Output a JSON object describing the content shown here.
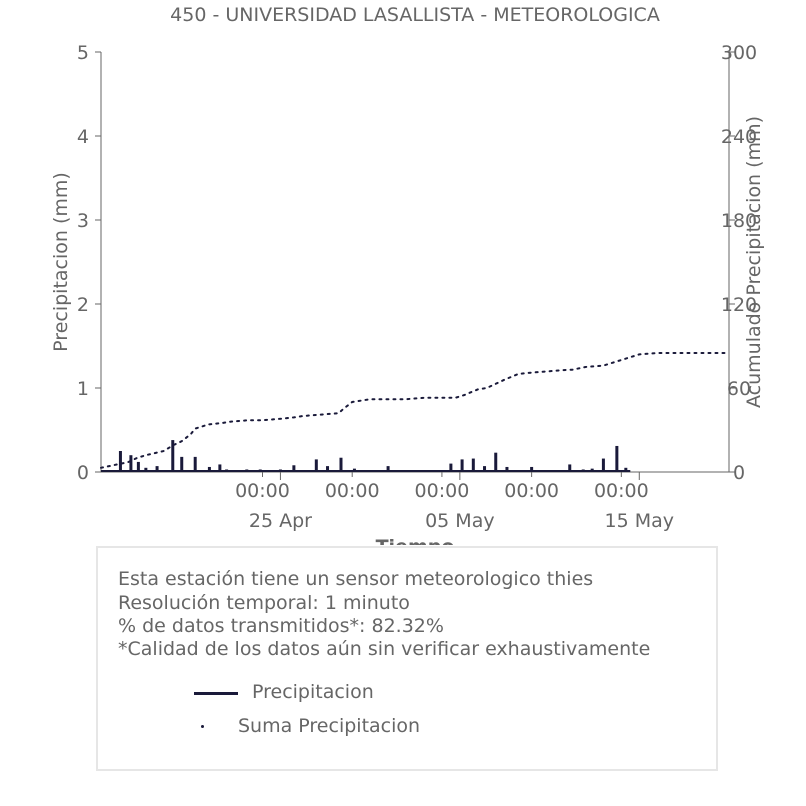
{
  "chart_data": {
    "type": "bar",
    "title": "450 - UNIVERSIDAD LASALLISTA - METEOROLOGICA",
    "xlabel": "Tiempo",
    "ylabel": "Precipitacion (mm)",
    "y2label": "Acumulado Precipitacion (mm)",
    "ylim": [
      0,
      5
    ],
    "y2lim": [
      0,
      300
    ],
    "yticks": [
      "0",
      "1",
      "2",
      "3",
      "4",
      "5"
    ],
    "y2ticks": [
      "0",
      "60",
      "120",
      "180",
      "240",
      "300"
    ],
    "xlim": [
      "2024-04-15",
      "2024-05-20"
    ],
    "xticks_time": [
      "00:00",
      "00:00",
      "00:00",
      "00:00",
      "00:00"
    ],
    "xticks_time_at": [
      "2024-04-24",
      "2024-04-29",
      "2024-05-04",
      "2024-05-09",
      "2024-05-14"
    ],
    "xticks_date": [
      "25 Apr",
      "05 May",
      "15 May"
    ],
    "xticks_date_at": [
      "2024-04-25",
      "2024-05-05",
      "2024-05-15"
    ],
    "grid": false,
    "series": [
      {
        "name": "Precipitacion",
        "axis": "left",
        "color": "#1a1a3a",
        "x": [
          "2024-04-16T02:00",
          "2024-04-16T16:00",
          "2024-04-17T02:00",
          "2024-04-17T12:00",
          "2024-04-18T03:00",
          "2024-04-19T00:00",
          "2024-04-19T12:00",
          "2024-04-20T06:00",
          "2024-04-21T01:00",
          "2024-04-21T15:00",
          "2024-04-22T00:00",
          "2024-04-23T03:00",
          "2024-04-23T21:00",
          "2024-04-25T00:00",
          "2024-04-25T18:00",
          "2024-04-27T00:00",
          "2024-04-27T15:00",
          "2024-04-28T09:00",
          "2024-04-29T03:00",
          "2024-05-01T00:00",
          "2024-05-04T12:00",
          "2024-05-05T03:00",
          "2024-05-05T18:00",
          "2024-05-06T09:00",
          "2024-05-07T00:00",
          "2024-05-07T15:00",
          "2024-05-09T00:00",
          "2024-05-11T03:00",
          "2024-05-11T21:00",
          "2024-05-12T09:00",
          "2024-05-13T00:00",
          "2024-05-13T18:00",
          "2024-05-14T06:00"
        ],
        "values": [
          0.25,
          0.2,
          0.12,
          0.05,
          0.07,
          0.38,
          0.18,
          0.18,
          0.06,
          0.09,
          0.03,
          0.03,
          0.03,
          0.03,
          0.08,
          0.15,
          0.07,
          0.17,
          0.04,
          0.07,
          0.1,
          0.15,
          0.16,
          0.07,
          0.23,
          0.06,
          0.06,
          0.09,
          0.03,
          0.04,
          0.16,
          0.31,
          0.05
        ]
      },
      {
        "name": "Suma Precipitacion",
        "axis": "right",
        "color": "#1a1a3a",
        "style": "dotted",
        "x": [
          "2024-04-15T00:00",
          "2024-04-16T12:00",
          "2024-04-17T00:00",
          "2024-04-17T12:00",
          "2024-04-18T12:00",
          "2024-04-19T00:00",
          "2024-04-19T12:00",
          "2024-04-20T00:00",
          "2024-04-20T06:00",
          "2024-04-21T00:00",
          "2024-04-21T18:00",
          "2024-04-22T06:00",
          "2024-04-23T06:00",
          "2024-04-24T00:00",
          "2024-04-25T00:00",
          "2024-04-25T18:00",
          "2024-04-26T06:00",
          "2024-04-27T06:00",
          "2024-04-28T06:00",
          "2024-04-28T12:00",
          "2024-04-29T00:00",
          "2024-04-30T00:00",
          "2024-05-01T00:00",
          "2024-05-02T00:00",
          "2024-05-03T00:00",
          "2024-05-04T00:00",
          "2024-05-04T18:00",
          "2024-05-05T06:00",
          "2024-05-06T00:00",
          "2024-05-06T12:00",
          "2024-05-07T00:00",
          "2024-05-07T12:00",
          "2024-05-08T06:00",
          "2024-05-09T00:00",
          "2024-05-10T00:00",
          "2024-05-11T00:00",
          "2024-05-11T06:00",
          "2024-05-12T00:00",
          "2024-05-13T00:00",
          "2024-05-13T12:00",
          "2024-05-14T00:00",
          "2024-05-15T00:00",
          "2024-05-16T00:00",
          "2024-05-17T00:00",
          "2024-05-18T00:00",
          "2024-05-19T00:00",
          "2024-05-20T00:00"
        ],
        "values": [
          3,
          7,
          10,
          12,
          15,
          19,
          22,
          27,
          31,
          34,
          35,
          36,
          37,
          37,
          38,
          39,
          40,
          41,
          42,
          45,
          50,
          52,
          52,
          52,
          53,
          53,
          53,
          55,
          59,
          60,
          63,
          66,
          70,
          71,
          72,
          73,
          73,
          75,
          76,
          78,
          80,
          84,
          85,
          85,
          85,
          85,
          85
        ]
      }
    ]
  },
  "info": {
    "lines": [
      "Esta estación tiene un sensor meteorologico thies",
      "Resolución temporal: 1 minuto",
      "% de datos transmitidos*: 82.32%",
      "*Calidad de los datos aún sin verificar exhaustivamente"
    ]
  },
  "legend": {
    "items": [
      "Precipitacion",
      "Suma Precipitacion"
    ]
  }
}
